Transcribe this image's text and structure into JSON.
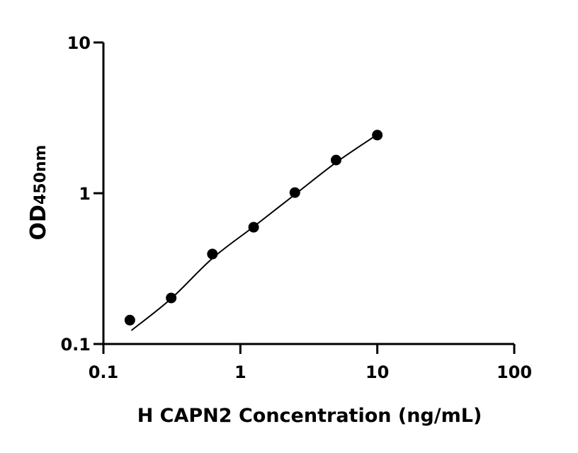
{
  "chart_data": {
    "type": "scatter",
    "title": "",
    "xlabel": "H CAPN2 Concentration (ng/mL)",
    "ylabel_main": "OD",
    "ylabel_sub": "450nm",
    "xscale": "log",
    "yscale": "log",
    "xlim": [
      0.1,
      100
    ],
    "ylim": [
      0.1,
      10
    ],
    "xticks": [
      "0.1",
      "1",
      "10",
      "100"
    ],
    "yticks": [
      "0.1",
      "1",
      "10"
    ],
    "xtick_values": [
      0.1,
      1,
      10,
      100
    ],
    "ytick_values": [
      0.1,
      1,
      10
    ],
    "grid": false,
    "marker_color": "#000000",
    "points": {
      "x": [
        0.156,
        0.3125,
        0.625,
        1.25,
        2.5,
        5,
        10
      ],
      "y": [
        0.144,
        0.202,
        0.395,
        0.595,
        1.01,
        1.66,
        2.43
      ]
    },
    "fit_curve": {
      "x": [
        0.16,
        0.3125,
        0.625,
        1.25,
        2.5,
        5,
        10
      ],
      "y": [
        0.123,
        0.2,
        0.37,
        0.6,
        0.98,
        1.6,
        2.45
      ]
    }
  }
}
